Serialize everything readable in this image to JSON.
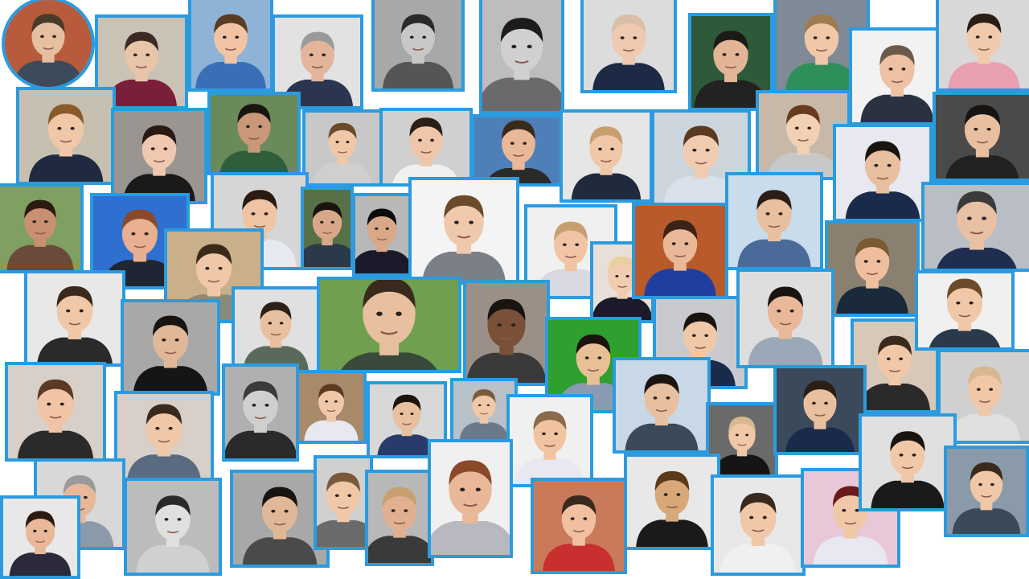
{
  "collage": {
    "frame_color": "#2b9be0",
    "portraits": [
      {
        "bg": "#b85a3c",
        "skin": "#e6bfa0",
        "hair": "#4a3a2a",
        "shirt": "#3d4a5a"
      },
      {
        "bg": "#c9c2b5",
        "skin": "#e8c4a8",
        "hair": "#3a2a22",
        "shirt": "#7a1f3a"
      },
      {
        "bg": "#8fb3d6",
        "skin": "#f0c4a4",
        "hair": "#5a3c22",
        "shirt": "#3a6fb8"
      },
      {
        "bg": "#e2e2e2",
        "skin": "#e3b59a",
        "hair": "#9a9a9a",
        "shirt": "#2b3550"
      },
      {
        "bg": "#a8a8a8",
        "skin": "#c8c8c8",
        "hair": "#2a2a2a",
        "shirt": "#555555"
      },
      {
        "bg": "#bdbdbd",
        "skin": "#d0d0d0",
        "hair": "#1c1c1c",
        "shirt": "#6a6a6a"
      },
      {
        "bg": "#dcdcdc",
        "skin": "#efc9b0",
        "hair": "#d8c0a8",
        "shirt": "#1e2a45"
      },
      {
        "bg": "#2e5a3a",
        "skin": "#e3b596",
        "hair": "#1c1a18",
        "shirt": "#222222"
      },
      {
        "bg": "#7f8a96",
        "skin": "#f0c8a8",
        "hair": "#a07a50",
        "shirt": "#2f8f5a"
      },
      {
        "bg": "#f2f2f2",
        "skin": "#eec0a4",
        "hair": "#6a5a4a",
        "shirt": "#2a3140"
      },
      {
        "bg": "#d8d8d8",
        "skin": "#f1c9ad",
        "hair": "#2a1e16",
        "shirt": "#e8a0b0"
      },
      {
        "bg": "#c7c0b0",
        "skin": "#f0c8a8",
        "hair": "#8a5a2a",
        "shirt": "#1f2a40"
      },
      {
        "bg": "#9a9590",
        "skin": "#f0c8b0",
        "hair": "#2a1a14",
        "shirt": "#1a1a1a"
      },
      {
        "bg": "#6a8a5a",
        "skin": "#c89878",
        "hair": "#1a1410",
        "shirt": "#2f5f3a"
      },
      {
        "bg": "#c8c8c8",
        "skin": "#f0c8a8",
        "hair": "#6a4a2a",
        "shirt": "#cfcfcf"
      },
      {
        "bg": "#d0d0d0",
        "skin": "#efc6aa",
        "hair": "#2a2018",
        "shirt": "#f0f0f0"
      },
      {
        "bg": "#4f7fb8",
        "skin": "#e8b898",
        "hair": "#3a2a1a",
        "shirt": "#2a2a2a"
      },
      {
        "bg": "#e6e6e6",
        "skin": "#f0c8a8",
        "hair": "#c8a070",
        "shirt": "#1f2a3c"
      },
      {
        "bg": "#cdd5dc",
        "skin": "#f1cbb0",
        "hair": "#5a3a22",
        "shirt": "#d8e0ea"
      },
      {
        "bg": "#c8b8a8",
        "skin": "#f2d0b4",
        "hair": "#6a3a1e",
        "shirt": "#c8c8c8"
      },
      {
        "bg": "#e8e8f0",
        "skin": "#e8c0a0",
        "hair": "#1a1410",
        "shirt": "#1a2a4a"
      },
      {
        "bg": "#4a4a4a",
        "skin": "#e8c0a0",
        "hair": "#1a1410",
        "shirt": "#222222"
      },
      {
        "bg": "#7fa060",
        "skin": "#c89070",
        "hair": "#2a1a10",
        "shirt": "#6a4a3a"
      },
      {
        "bg": "#2f6fd0",
        "skin": "#e8b090",
        "hair": "#8a4a2a",
        "shirt": "#1f2633"
      },
      {
        "bg": "#d6d6d6",
        "skin": "#eec4a4",
        "hair": "#2a1a10",
        "shirt": "#e6eaf0"
      },
      {
        "bg": "#587048",
        "skin": "#d8a888",
        "hair": "#1a1410",
        "shirt": "#2a3a4a"
      },
      {
        "bg": "#b8b8b8",
        "skin": "#d8a888",
        "hair": "#0e0c0a",
        "shirt": "#1a1a2a"
      },
      {
        "bg": "#f4f4f4",
        "skin": "#f0c8ac",
        "hair": "#6a4a2a",
        "shirt": "#7a7f88"
      },
      {
        "bg": "#f0f0f0",
        "skin": "#f0c4a4",
        "hair": "#c8a070",
        "shirt": "#d8d8e0"
      },
      {
        "bg": "#e8e0d8",
        "skin": "#f0ccb0",
        "hair": "#e8d0a0",
        "shirt": "#1a1a2a"
      },
      {
        "bg": "#b85a2a",
        "skin": "#e8b898",
        "hair": "#3a2418",
        "shirt": "#1f3fa0"
      },
      {
        "bg": "#c8dcec",
        "skin": "#e8c0a0",
        "hair": "#2a1e16",
        "shirt": "#4a6a9a"
      },
      {
        "bg": "#8a8070",
        "skin": "#eebe9e",
        "hair": "#7a5a30",
        "shirt": "#1a2a3a"
      },
      {
        "bg": "#b8bec4",
        "skin": "#e8c0a4",
        "hair": "#3a3a3a",
        "shirt": "#1f2d50"
      },
      {
        "bg": "#e8e8e8",
        "skin": "#f0c8a8",
        "hair": "#3a2a1e",
        "shirt": "#2a2a2a"
      },
      {
        "bg": "#c9b08a",
        "skin": "#f0c8a8",
        "hair": "#3a2a1a",
        "shirt": "#8a8a7a"
      },
      {
        "bg": "#a8a8a8",
        "skin": "#e0b898",
        "hair": "#1a1410",
        "shirt": "#151515"
      },
      {
        "bg": "#e0e0e0",
        "skin": "#e8c0a0",
        "hair": "#2a2018",
        "shirt": "#5a6a5a"
      },
      {
        "bg": "#6f9f4f",
        "skin": "#e8c0a0",
        "hair": "#3a2a1e",
        "shirt": "#3a4a3a"
      },
      {
        "bg": "#9a9088",
        "skin": "#7a5038",
        "hair": "#1a1410",
        "shirt": "#3a3a3a"
      },
      {
        "bg": "#2f9f2f",
        "skin": "#e8c098",
        "hair": "#1a1410",
        "shirt": "#8a9ab0"
      },
      {
        "bg": "#c8cad0",
        "skin": "#f0c8a8",
        "hair": "#1a1410",
        "shirt": "#1a2a4a"
      },
      {
        "bg": "#dedede",
        "skin": "#e8b898",
        "hair": "#1a1410",
        "shirt": "#9aa8b8"
      },
      {
        "bg": "#d8c8b8",
        "skin": "#f0c8a8",
        "hair": "#3a2a1e",
        "shirt": "#2a2a2a"
      },
      {
        "bg": "#f0f0f0",
        "skin": "#f0c8a8",
        "hair": "#6a4a2a",
        "shirt": "#2a3a4a"
      },
      {
        "bg": "#d8d0c8",
        "skin": "#f0c4a4",
        "hair": "#5a3a22",
        "shirt": "#2a2a2a"
      },
      {
        "bg": "#d8d0c8",
        "skin": "#f0c8a8",
        "hair": "#3a2a1e",
        "shirt": "#5a6a80"
      },
      {
        "bg": "#b0b0b0",
        "skin": "#cfcfcf",
        "hair": "#3a3a3a",
        "shirt": "#2a2a2a"
      },
      {
        "bg": "#a88a6a",
        "skin": "#f0c8a8",
        "hair": "#5a3a22",
        "shirt": "#e8e8f0"
      },
      {
        "bg": "#d8d8d8",
        "skin": "#e8c0a0",
        "hair": "#1a1410",
        "shirt": "#2a3a6a"
      },
      {
        "bg": "#b8c0c8",
        "skin": "#f0c8a8",
        "hair": "#7a5a3a",
        "shirt": "#6a7a8a"
      },
      {
        "bg": "#f0f0f0",
        "skin": "#f0c4a0",
        "hair": "#8a6a4a",
        "shirt": "#e8e8f0"
      },
      {
        "bg": "#c9d8e6",
        "skin": "#e8c0a0",
        "hair": "#1a1410",
        "shirt": "#3a4a5a"
      },
      {
        "bg": "#6a6a6a",
        "skin": "#f0c8a8",
        "hair": "#d8b890",
        "shirt": "#151515"
      },
      {
        "bg": "#3a4a5a",
        "skin": "#e8c0a0",
        "hair": "#2a1e16",
        "shirt": "#1a2a4a"
      },
      {
        "bg": "#d0d0d0",
        "skin": "#f0c8a8",
        "hair": "#d8b890",
        "shirt": "#e0e0e0"
      },
      {
        "bg": "#d8d8d8",
        "skin": "#e8b898",
        "hair": "#9a9a9a",
        "shirt": "#8a9aaa"
      },
      {
        "bg": "#e8e8e8",
        "skin": "#e8b898",
        "hair": "#2a1a10",
        "shirt": "#2a2a3a"
      },
      {
        "bg": "#bcbcbc",
        "skin": "#e0e0e0",
        "hair": "#2a2a2a",
        "shirt": "#d0d0d0"
      },
      {
        "bg": "#a8a8a8",
        "skin": "#e0b898",
        "hair": "#1a1410",
        "shirt": "#4a4a4a"
      },
      {
        "bg": "#d0d0d0",
        "skin": "#f0c8a8",
        "hair": "#7a5a3a",
        "shirt": "#6a6a6a"
      },
      {
        "bg": "#b8b8b8",
        "skin": "#e0b090",
        "hair": "#c8a070",
        "shirt": "#3a3a3a"
      },
      {
        "bg": "#f0f0f0",
        "skin": "#e8b898",
        "hair": "#8a4a2a",
        "shirt": "#b8b8c0"
      },
      {
        "bg": "#c87a5a",
        "skin": "#f0c0a0",
        "hair": "#3a2a1e",
        "shirt": "#c83030"
      },
      {
        "bg": "#e8e8e8",
        "skin": "#d8a878",
        "hair": "#5a3a1a",
        "shirt": "#1a1a1a"
      },
      {
        "bg": "#e8e8e8",
        "skin": "#f0c8a8",
        "hair": "#3a2a1e",
        "shirt": "#f0f0f0"
      },
      {
        "bg": "#e8c8d8",
        "skin": "#f0c8a8",
        "hair": "#6a1a1a",
        "shirt": "#e8e8f0"
      },
      {
        "bg": "#e0e0e0",
        "skin": "#f0c8a8",
        "hair": "#1a1410",
        "shirt": "#1a1a1a"
      },
      {
        "bg": "#8a9aa8",
        "skin": "#f0c8a8",
        "hair": "#3a2a1e",
        "shirt": "#3a4a5a"
      },
      {
        "bg": "#d8d8d8",
        "skin": "#e8c0a0",
        "hair": "#1a1410",
        "shirt": "#2a2a3a"
      },
      {
        "bg": "#6a7a5a",
        "skin": "#e8b898",
        "hair": "#1a1410",
        "shirt": "#3a3a3a"
      },
      {
        "bg": "#e8e8e8",
        "skin": "#e8c0a0",
        "hair": "#1a1410",
        "shirt": "#e8e8e8"
      },
      {
        "bg": "#f0f0f0",
        "skin": "#f0c8a8",
        "hair": "#1a1410",
        "shirt": "#2a3a6a"
      },
      {
        "bg": "#7a8a98",
        "skin": "#f0c8a8",
        "hair": "#7a5a3a",
        "shirt": "#1a1a1a"
      }
    ]
  }
}
